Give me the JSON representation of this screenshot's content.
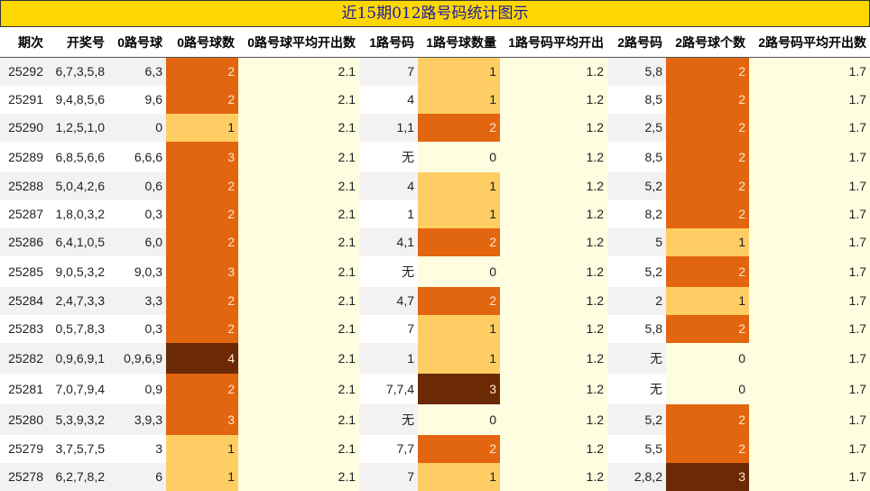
{
  "title": "近15期012路号码统计图示",
  "chart_data": {
    "type": "table",
    "columns": [
      "期次",
      "开奖号",
      "0路号球",
      "0路号球数",
      "0路号球平均开出数",
      "1路号码",
      "1路号球数量",
      "1路号码平均开出",
      "2路号码",
      "2路号球个数",
      "2路号码平均开出数"
    ],
    "rows": [
      [
        "25292",
        "6,7,3,5,8",
        "6,3",
        2,
        "2.1",
        "7",
        1,
        "1.2",
        "5,8",
        2,
        "1.7"
      ],
      [
        "25291",
        "9,4,8,5,6",
        "9,6",
        2,
        "2.1",
        "4",
        1,
        "1.2",
        "8,5",
        2,
        "1.7"
      ],
      [
        "25290",
        "1,2,5,1,0",
        "0",
        1,
        "2.1",
        "1,1",
        2,
        "1.2",
        "2,5",
        2,
        "1.7"
      ],
      [
        "25289",
        "6,8,5,6,6",
        "6,6,6",
        3,
        "2.1",
        "无",
        0,
        "1.2",
        "8,5",
        2,
        "1.7"
      ],
      [
        "25288",
        "5,0,4,2,6",
        "0,6",
        2,
        "2.1",
        "4",
        1,
        "1.2",
        "5,2",
        2,
        "1.7"
      ],
      [
        "25287",
        "1,8,0,3,2",
        "0,3",
        2,
        "2.1",
        "1",
        1,
        "1.2",
        "8,2",
        2,
        "1.7"
      ],
      [
        "25286",
        "6,4,1,0,5",
        "6,0",
        2,
        "2.1",
        "4,1",
        2,
        "1.2",
        "5",
        1,
        "1.7"
      ],
      [
        "25285",
        "9,0,5,3,2",
        "9,0,3",
        3,
        "2.1",
        "无",
        0,
        "1.2",
        "5,2",
        2,
        "1.7"
      ],
      [
        "25284",
        "2,4,7,3,3",
        "3,3",
        2,
        "2.1",
        "4,7",
        2,
        "1.2",
        "2",
        1,
        "1.7"
      ],
      [
        "25283",
        "0,5,7,8,3",
        "0,3",
        2,
        "2.1",
        "7",
        1,
        "1.2",
        "5,8",
        2,
        "1.7"
      ],
      [
        "25282",
        "0,9,6,9,1",
        "0,9,6,9",
        4,
        "2.1",
        "1",
        1,
        "1.2",
        "无",
        0,
        "1.7"
      ],
      [
        "25281",
        "7,0,7,9,4",
        "0,9",
        2,
        "2.1",
        "7,7,4",
        3,
        "1.2",
        "无",
        0,
        "1.7"
      ],
      [
        "25280",
        "5,3,9,3,2",
        "3,9,3",
        3,
        "2.1",
        "无",
        0,
        "1.2",
        "5,2",
        2,
        "1.7"
      ],
      [
        "25279",
        "3,7,5,7,5",
        "3",
        1,
        "2.1",
        "7,7",
        2,
        "1.2",
        "5,5",
        2,
        "1.7"
      ],
      [
        "25278",
        "6,2,7,8,2",
        "6",
        1,
        "2.1",
        "7",
        1,
        "1.2",
        "2,8,2",
        3,
        "1.7"
      ]
    ]
  },
  "colors": {
    "title_bg": "#ffd700",
    "title_text": "#1a1aa6",
    "count_0": "#fffde0",
    "count_1": "#fecd64",
    "count_2": "#e2650f",
    "count_3_plus": "#6b2a05"
  }
}
